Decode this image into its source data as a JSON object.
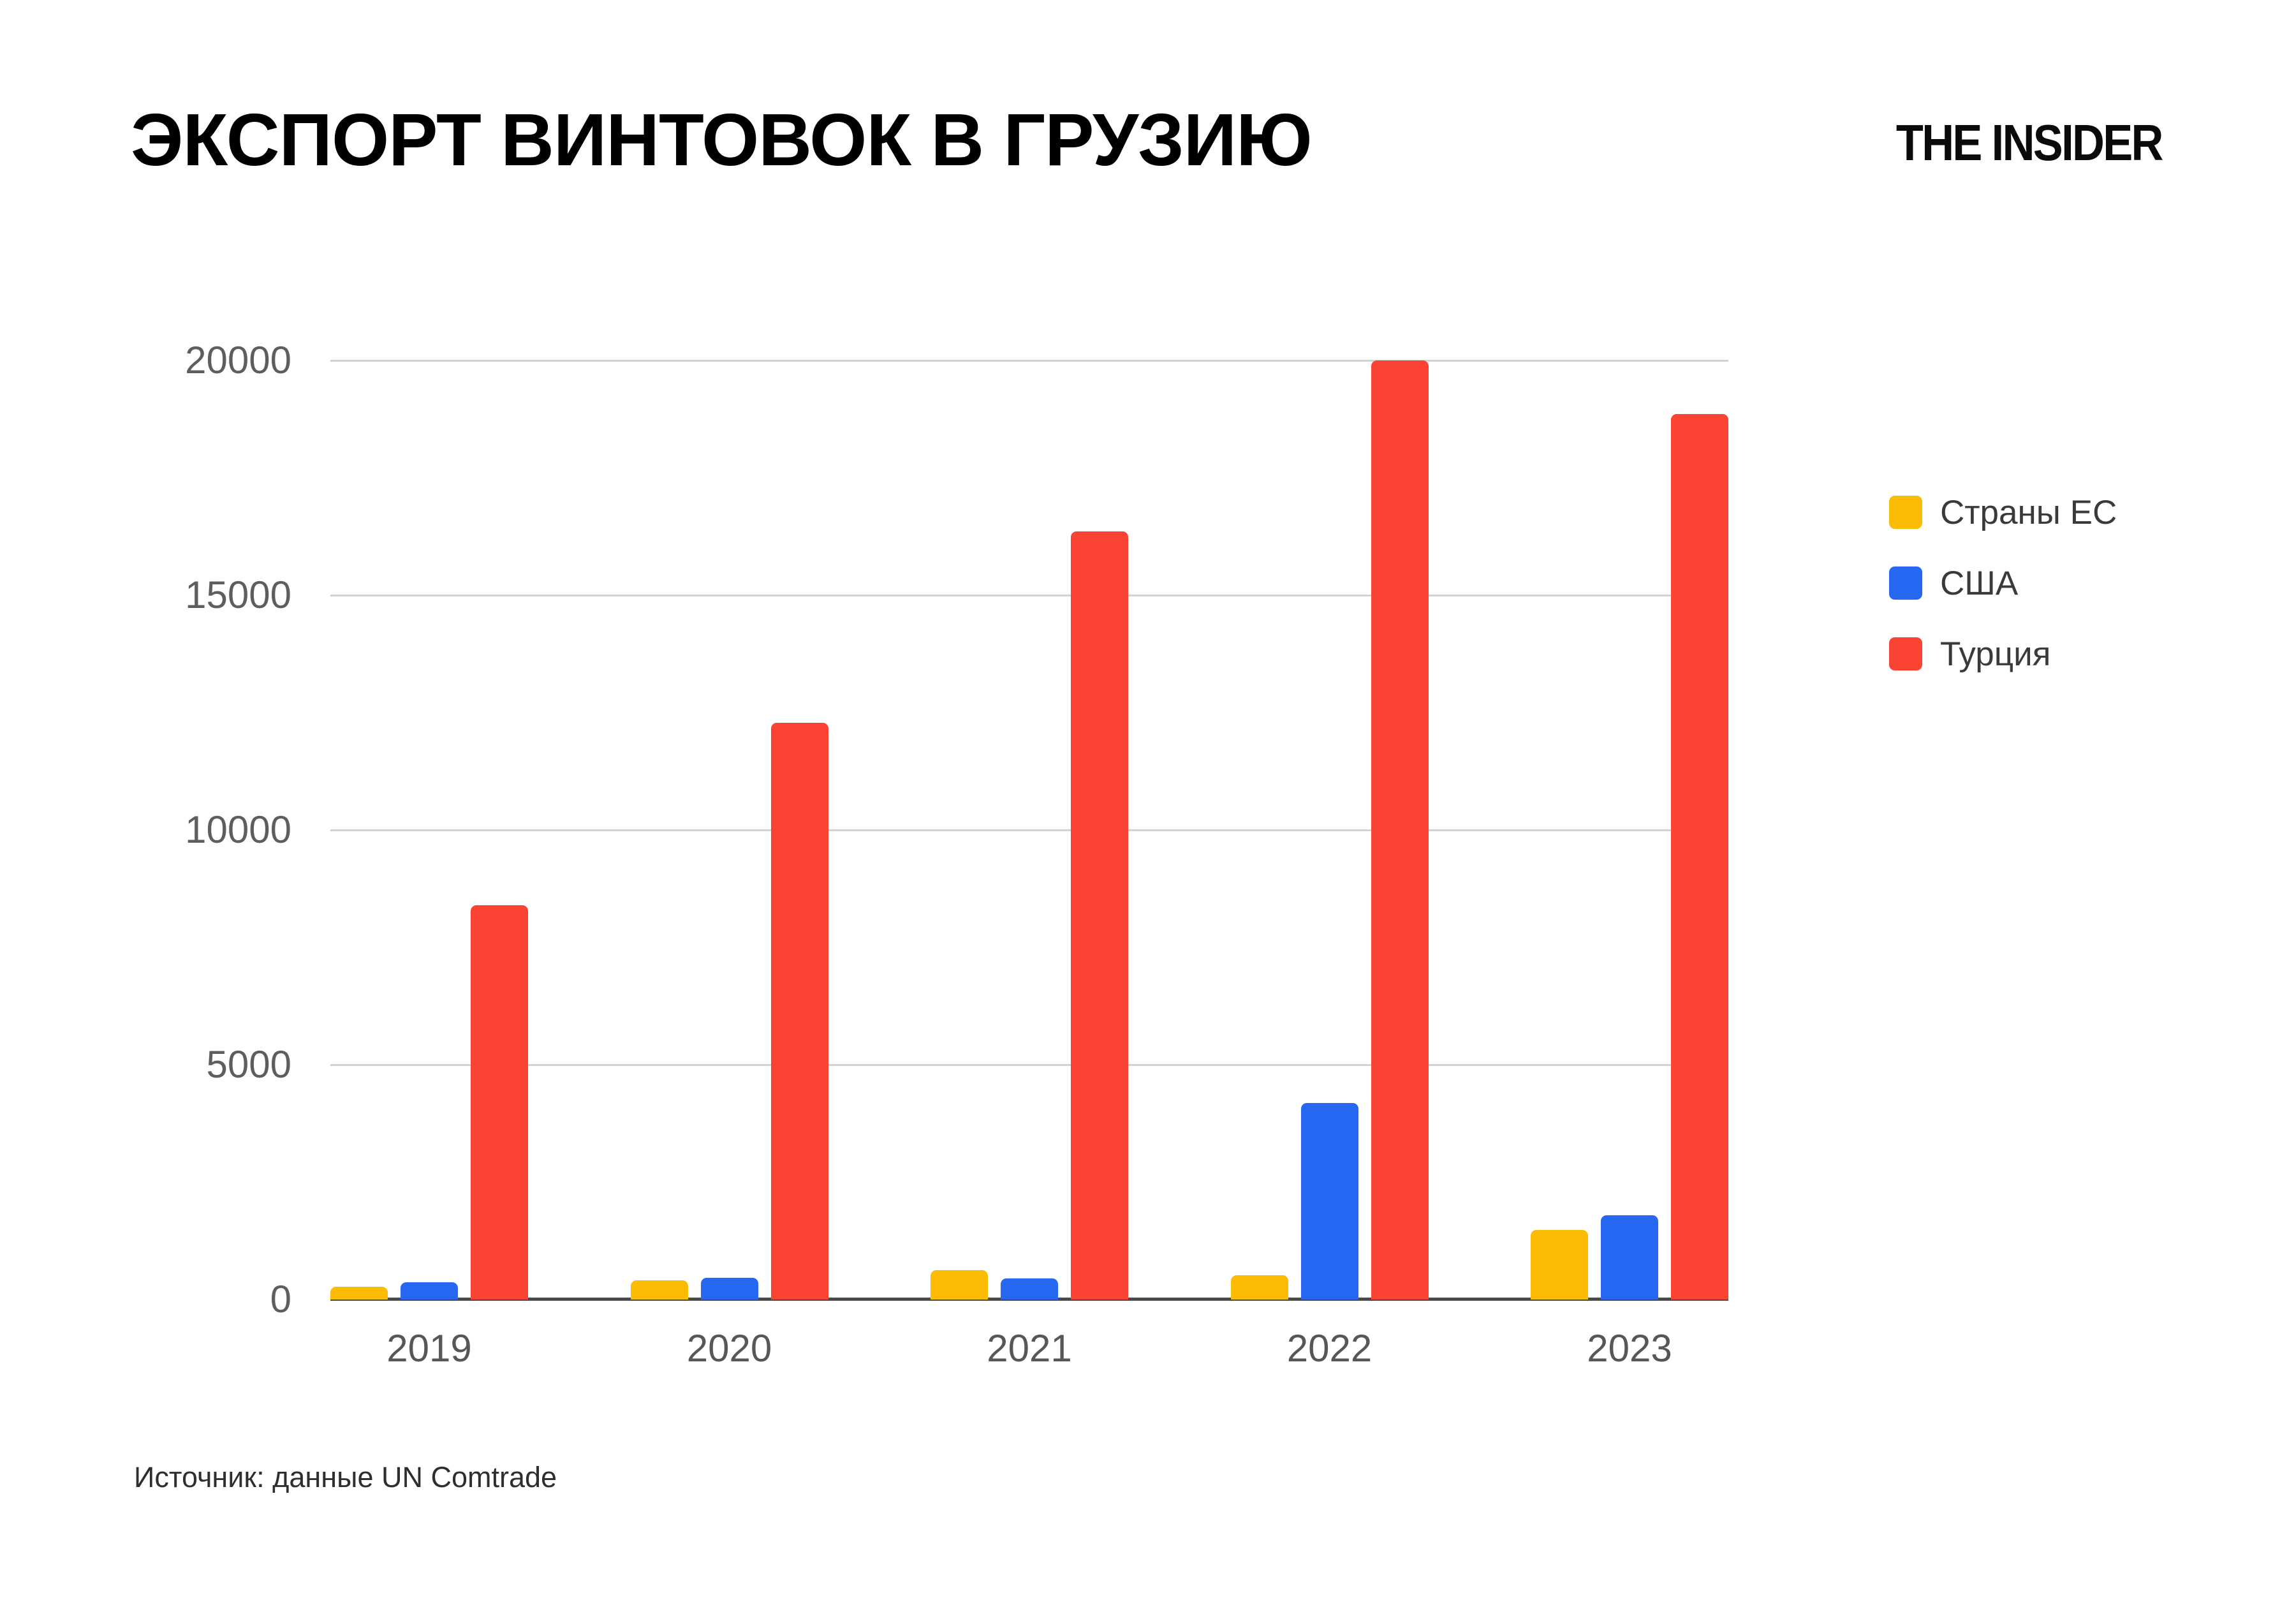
{
  "header": {
    "title": "ЭКСПОРТ ВИНТОВОК В ГРУЗИЮ",
    "logo": "THE INSIDER"
  },
  "source_note": "Источник: данные UN Comtrade",
  "colors": {
    "eu": "#FCBB05",
    "usa": "#2668F2",
    "turkey": "#FA4332",
    "gridline": "#D4D4D4",
    "axis_line": "#4A4A4A",
    "tick_label": "#5E5E5E",
    "legend_text": "#3A3A3A",
    "title_text": "#000000"
  },
  "chart_data": {
    "type": "bar",
    "title": "ЭКСПОРТ ВИНТОВОК В ГРУЗИЮ",
    "categories": [
      "2019",
      "2020",
      "2021",
      "2022",
      "2023"
    ],
    "series": [
      {
        "name": "Страны ЕС",
        "color": "#FCBB05",
        "values": [
          270,
          410,
          630,
          520,
          1480
        ]
      },
      {
        "name": "США",
        "color": "#2668F2",
        "values": [
          370,
          460,
          450,
          4190,
          1790
        ]
      },
      {
        "name": "Турция",
        "color": "#FA4332",
        "values": [
          8400,
          12280,
          16360,
          20000,
          18860
        ]
      }
    ],
    "xlabel": "",
    "ylabel": "",
    "ylim": [
      0,
      20000
    ],
    "yticks": [
      0,
      5000,
      10000,
      15000,
      20000
    ],
    "grid": true,
    "legend_position": "right"
  }
}
